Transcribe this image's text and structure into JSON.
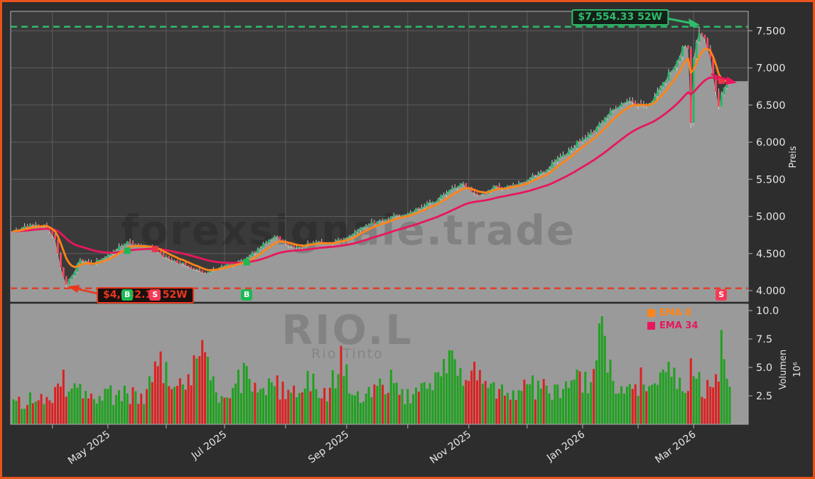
{
  "watermark": {
    "brand": "forexsignale.trade",
    "symbol": "RIO.L",
    "subtitle": "Rio Tinto"
  },
  "legend": [
    {
      "label": "EMA 8",
      "color": "#ff8519"
    },
    {
      "label": "EMA 34",
      "color": "#e8175d"
    }
  ],
  "axes": {
    "price_label": "Preis",
    "volume_label": "Volumen",
    "volume_scale": "10⁶",
    "price_ticks": [
      {
        "value": 4000,
        "label": "4.000"
      },
      {
        "value": 4500,
        "label": "4.500"
      },
      {
        "value": 5000,
        "label": "5.000"
      },
      {
        "value": 5500,
        "label": "5.500"
      },
      {
        "value": 6000,
        "label": "6.000"
      },
      {
        "value": 6500,
        "label": "6.500"
      },
      {
        "value": 7000,
        "label": "7.000"
      },
      {
        "value": 7500,
        "label": "7.500"
      }
    ],
    "volume_ticks": [
      {
        "value": 2.5,
        "label": "2.5"
      },
      {
        "value": 5.0,
        "label": "5.0"
      },
      {
        "value": 7.5,
        "label": "7.5"
      },
      {
        "value": 10.0,
        "label": "10.0"
      }
    ],
    "x_ticks": [
      {
        "day": 14
      },
      {
        "day": 34,
        "label": "May 2025"
      },
      {
        "day": 55
      },
      {
        "day": 76,
        "label": "Jul 2025"
      },
      {
        "day": 98
      },
      {
        "day": 120,
        "label": "Sep 2025"
      },
      {
        "day": 142
      },
      {
        "day": 164,
        "label": "Nov 2025"
      },
      {
        "day": 185
      },
      {
        "day": 205,
        "label": "Jan 2026"
      },
      {
        "day": 225
      },
      {
        "day": 245,
        "label": "Mar 2026"
      }
    ]
  },
  "annotations": {
    "high": {
      "label": "$7,554.33 52W",
      "price": 7554.33
    },
    "low": {
      "label": "$4,032.14 52W",
      "price": 4032.14
    }
  },
  "signals": [
    {
      "day": 41,
      "type": "B"
    },
    {
      "day": 51,
      "type": "S"
    },
    {
      "day": 84,
      "type": "B"
    },
    {
      "day": 255,
      "type": "S"
    }
  ],
  "colors": {
    "bg": "#2d2d2d",
    "panel": "#3a3a3a",
    "grid": "#5c5c5c",
    "spine": "#9f9f9f",
    "fill": "#9a9a9a",
    "text": "#e6e6e6",
    "candle_up": "#1fb864",
    "candle_down": "#f4485c",
    "wick": "#cccccc",
    "vol_up": "#1fa11f",
    "vol_down": "#dd2020",
    "ema8": "#ff8519",
    "ema34": "#e8175d",
    "high_line": "#2ebd6b",
    "low_line": "#e8381f",
    "badge_b": "#1db954",
    "badge_s": "#f23b57",
    "border": "#e8541c",
    "watermark": "rgba(0,0,0,0.16)"
  },
  "chart_data": {
    "type": "candlestick+volume",
    "symbol": "RIO.L",
    "x_unit": "trading-day index, 0 = mid-Mar 2025, 258 = mid-Mar 2026",
    "days": 259,
    "price_axis": {
      "min": 3856,
      "max": 7761,
      "ticks": [
        4000,
        4500,
        5000,
        5500,
        6000,
        6500,
        7000,
        7500
      ]
    },
    "volume_axis": {
      "min": 0,
      "max": 10.6,
      "unit": "1e6",
      "ticks": [
        2.5,
        5.0,
        7.5,
        10.0
      ]
    },
    "key_levels": {
      "high_52w": 7554.33,
      "low_52w": 4032.14
    },
    "ema_periods": [
      8,
      34
    ],
    "close_anchors": [
      [
        0,
        4800
      ],
      [
        4,
        4870
      ],
      [
        8,
        4890
      ],
      [
        12,
        4860
      ],
      [
        15,
        4690
      ],
      [
        17,
        4310
      ],
      [
        19,
        4080
      ],
      [
        21,
        4200
      ],
      [
        24,
        4420
      ],
      [
        28,
        4340
      ],
      [
        31,
        4410
      ],
      [
        34,
        4470
      ],
      [
        38,
        4600
      ],
      [
        41,
        4665
      ],
      [
        44,
        4620
      ],
      [
        48,
        4580
      ],
      [
        51,
        4545
      ],
      [
        54,
        4450
      ],
      [
        58,
        4410
      ],
      [
        62,
        4340
      ],
      [
        66,
        4290
      ],
      [
        69,
        4235
      ],
      [
        72,
        4290
      ],
      [
        76,
        4330
      ],
      [
        80,
        4380
      ],
      [
        84,
        4440
      ],
      [
        88,
        4560
      ],
      [
        92,
        4680
      ],
      [
        95,
        4730
      ],
      [
        99,
        4610
      ],
      [
        103,
        4590
      ],
      [
        107,
        4630
      ],
      [
        111,
        4650
      ],
      [
        115,
        4640
      ],
      [
        119,
        4700
      ],
      [
        123,
        4790
      ],
      [
        127,
        4880
      ],
      [
        131,
        4930
      ],
      [
        135,
        4960
      ],
      [
        139,
        5010
      ],
      [
        143,
        5060
      ],
      [
        147,
        5120
      ],
      [
        151,
        5190
      ],
      [
        155,
        5290
      ],
      [
        159,
        5390
      ],
      [
        162,
        5445
      ],
      [
        165,
        5330
      ],
      [
        168,
        5290
      ],
      [
        171,
        5350
      ],
      [
        174,
        5410
      ],
      [
        177,
        5380
      ],
      [
        180,
        5430
      ],
      [
        183,
        5460
      ],
      [
        186,
        5510
      ],
      [
        189,
        5570
      ],
      [
        192,
        5620
      ],
      [
        195,
        5740
      ],
      [
        198,
        5830
      ],
      [
        201,
        5920
      ],
      [
        204,
        6010
      ],
      [
        207,
        6090
      ],
      [
        210,
        6200
      ],
      [
        213,
        6320
      ],
      [
        216,
        6440
      ],
      [
        219,
        6520
      ],
      [
        222,
        6560
      ],
      [
        225,
        6520
      ],
      [
        228,
        6480
      ],
      [
        231,
        6620
      ],
      [
        234,
        6800
      ],
      [
        237,
        6960
      ],
      [
        239,
        7090
      ],
      [
        241,
        7290
      ],
      [
        243,
        7260
      ],
      [
        244,
        6260
      ],
      [
        245,
        7130
      ],
      [
        246,
        7350
      ],
      [
        247,
        7470
      ],
      [
        248,
        7440
      ],
      [
        249,
        7390
      ],
      [
        250,
        7260
      ],
      [
        251,
        7130
      ],
      [
        252,
        6890
      ],
      [
        253,
        6680
      ],
      [
        254,
        6480
      ],
      [
        255,
        6640
      ],
      [
        256,
        6730
      ],
      [
        257,
        6790
      ],
      [
        258,
        6820
      ]
    ],
    "volume_anchors": [
      [
        0,
        2.2
      ],
      [
        6,
        2.8
      ],
      [
        12,
        2.4
      ],
      [
        18,
        4.8
      ],
      [
        22,
        3.6
      ],
      [
        28,
        2.7
      ],
      [
        34,
        3.1
      ],
      [
        40,
        3.4
      ],
      [
        46,
        2.7
      ],
      [
        53,
        6.4
      ],
      [
        58,
        3.3
      ],
      [
        63,
        4.4
      ],
      [
        68,
        7.4
      ],
      [
        73,
        2.8
      ],
      [
        79,
        3.2
      ],
      [
        83,
        5.4
      ],
      [
        89,
        3.1
      ],
      [
        95,
        4.3
      ],
      [
        101,
        3.4
      ],
      [
        106,
        4.7
      ],
      [
        112,
        3.2
      ],
      [
        118,
        6.9
      ],
      [
        124,
        2.9
      ],
      [
        130,
        3.5
      ],
      [
        136,
        4.8
      ],
      [
        142,
        3.1
      ],
      [
        148,
        3.7
      ],
      [
        153,
        4.6
      ],
      [
        158,
        6.5
      ],
      [
        163,
        3.9
      ],
      [
        166,
        5.5
      ],
      [
        171,
        3.2
      ],
      [
        176,
        3.5
      ],
      [
        182,
        3.0
      ],
      [
        187,
        4.3
      ],
      [
        192,
        3.4
      ],
      [
        198,
        3.1
      ],
      [
        203,
        4.8
      ],
      [
        208,
        3.7
      ],
      [
        212,
        9.5
      ],
      [
        216,
        3.8
      ],
      [
        221,
        3.3
      ],
      [
        226,
        5.0
      ],
      [
        231,
        3.6
      ],
      [
        236,
        5.5
      ],
      [
        240,
        4.1
      ],
      [
        244,
        5.8
      ],
      [
        247,
        4.6
      ],
      [
        250,
        3.9
      ],
      [
        253,
        4.4
      ],
      [
        255,
        8.3
      ],
      [
        257,
        4.0
      ],
      [
        258,
        3.3
      ]
    ],
    "overrides": [
      {
        "day": 19,
        "low": 4032.14
      },
      {
        "day": 244,
        "low": 6185
      },
      {
        "day": 247,
        "high": 7554.33
      }
    ]
  }
}
